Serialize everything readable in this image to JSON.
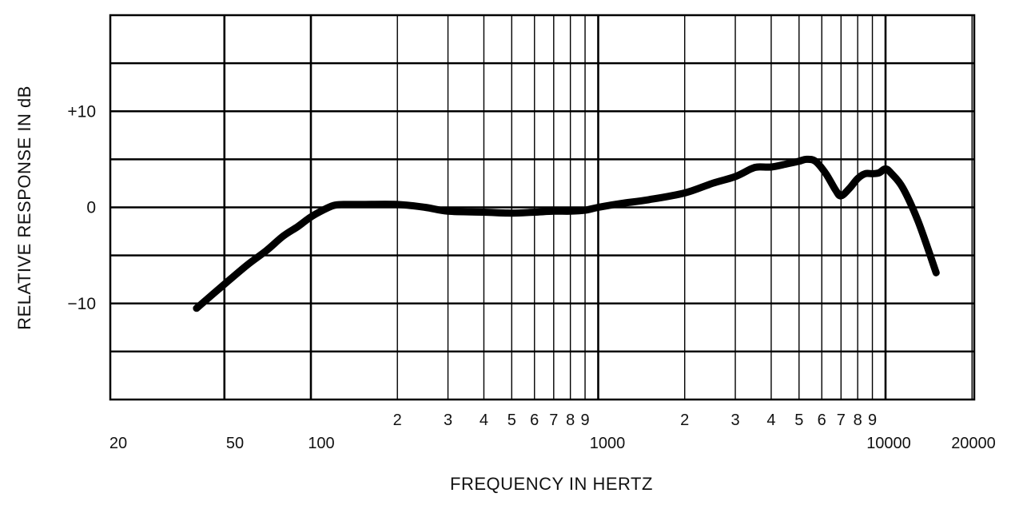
{
  "chart_data": {
    "type": "line",
    "title": "",
    "xlabel": "FREQUENCY IN HERTZ",
    "ylabel": "RELATIVE RESPONSE IN dB",
    "x_scale": "log",
    "xlim": [
      20,
      20000
    ],
    "ylim": [
      -20,
      20
    ],
    "grid": true,
    "legend": "none",
    "colors": {
      "line": "#000000",
      "grid": "#000000",
      "background": "#ffffff"
    },
    "y_ticks": [
      {
        "value": 10,
        "label": "+10"
      },
      {
        "value": 0,
        "label": "0"
      },
      {
        "value": -10,
        "label": "−10"
      }
    ],
    "x_minor_ticks": [
      {
        "value": 200,
        "label": "2"
      },
      {
        "value": 300,
        "label": "3"
      },
      {
        "value": 400,
        "label": "4"
      },
      {
        "value": 500,
        "label": "5"
      },
      {
        "value": 600,
        "label": "6"
      },
      {
        "value": 700,
        "label": "7"
      },
      {
        "value": 800,
        "label": "8"
      },
      {
        "value": 900,
        "label": "9"
      },
      {
        "value": 2000,
        "label": "2"
      },
      {
        "value": 3000,
        "label": "3"
      },
      {
        "value": 4000,
        "label": "4"
      },
      {
        "value": 5000,
        "label": "5"
      },
      {
        "value": 6000,
        "label": "6"
      },
      {
        "value": 7000,
        "label": "7"
      },
      {
        "value": 8000,
        "label": "8"
      },
      {
        "value": 9000,
        "label": "9"
      }
    ],
    "x_major_ticks": [
      {
        "value": 20,
        "label": "20"
      },
      {
        "value": 50,
        "label": "50"
      },
      {
        "value": 100,
        "label": "100"
      },
      {
        "value": 1000,
        "label": "1000"
      },
      {
        "value": 10000,
        "label": "10000"
      },
      {
        "value": 20000,
        "label": "20000"
      }
    ],
    "series": [
      {
        "x": [
          40,
          50,
          60,
          70,
          80,
          90,
          100,
          110,
          120,
          130,
          150,
          200,
          250,
          300,
          400,
          500,
          600,
          700,
          800,
          900,
          1000,
          1200,
          1500,
          2000,
          2500,
          3000,
          3400,
          3600,
          4000,
          4500,
          5000,
          5300,
          5700,
          6200,
          6700,
          7000,
          7500,
          8000,
          8500,
          9000,
          9500,
          10000,
          10500,
          11500,
          13000,
          15000
        ],
        "y": [
          -10.5,
          -8,
          -6,
          -4.5,
          -3,
          -2,
          -1,
          -0.3,
          0.2,
          0.3,
          0.3,
          0.3,
          0,
          -0.4,
          -0.5,
          -0.6,
          -0.5,
          -0.4,
          -0.4,
          -0.3,
          0,
          0.4,
          0.8,
          1.5,
          2.5,
          3.2,
          4,
          4.2,
          4.2,
          4.5,
          4.8,
          5,
          4.8,
          3.5,
          1.8,
          1.2,
          2,
          3,
          3.5,
          3.5,
          3.6,
          4,
          3.5,
          2,
          -1.5,
          -6.8
        ]
      }
    ]
  }
}
